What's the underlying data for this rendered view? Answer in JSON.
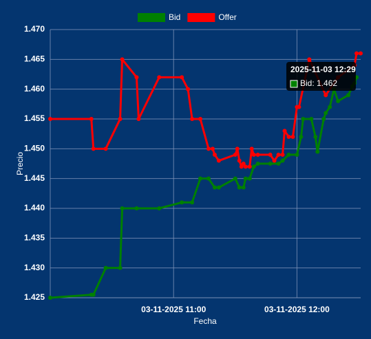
{
  "chart_data": {
    "type": "line",
    "x_label": "Fecha",
    "y_label": "Precio",
    "xlim": [
      "03-11-2025 10:00",
      "03-11-2025 12:31"
    ],
    "xticks": [
      "03-11-2025 11:00",
      "03-11-2025 12:00"
    ],
    "ylim": [
      1.425,
      1.47
    ],
    "yticks": [
      1.425,
      {
        "value": 1.43,
        "label": "1.430"
      },
      1.435,
      {
        "value": 1.44,
        "label": "1.440"
      },
      1.445,
      {
        "value": 1.45,
        "label": "1.450"
      },
      1.455,
      {
        "value": 1.46,
        "label": "1.460"
      },
      1.465,
      {
        "value": 1.47,
        "label": "1.470"
      }
    ],
    "grid": true,
    "legend_position": "top",
    "series": [
      {
        "name": "Bid",
        "color": "#008000",
        "x": [
          "03-11-2025 10:00",
          "03-11-2025 10:20",
          "03-11-2025 10:21",
          "03-11-2025 10:27",
          "03-11-2025 10:34",
          "03-11-2025 10:35",
          "03-11-2025 10:42",
          "03-11-2025 10:53",
          "03-11-2025 11:04",
          "03-11-2025 11:09",
          "03-11-2025 11:13",
          "03-11-2025 11:17",
          "03-11-2025 11:20",
          "03-11-2025 11:22",
          "03-11-2025 11:30",
          "03-11-2025 11:32",
          "03-11-2025 11:34",
          "03-11-2025 11:35",
          "03-11-2025 11:37",
          "03-11-2025 11:39",
          "03-11-2025 11:41",
          "03-11-2025 11:47",
          "03-11-2025 11:51",
          "03-11-2025 11:53",
          "03-11-2025 11:56",
          "03-11-2025 12:00",
          "03-11-2025 12:02",
          "03-11-2025 12:03",
          "03-11-2025 12:07",
          "03-11-2025 12:09",
          "03-11-2025 12:10",
          "03-11-2025 12:13",
          "03-11-2025 12:14",
          "03-11-2025 12:16",
          "03-11-2025 12:18",
          "03-11-2025 12:20",
          "03-11-2025 12:25",
          "03-11-2025 12:27",
          "03-11-2025 12:28",
          "03-11-2025 12:29"
        ],
        "values": [
          1.425,
          1.4255,
          1.4255,
          1.43,
          1.43,
          1.44,
          1.44,
          1.44,
          1.441,
          1.441,
          1.445,
          1.445,
          1.4435,
          1.4435,
          1.445,
          1.4435,
          1.4435,
          1.445,
          1.445,
          1.447,
          1.4475,
          1.4475,
          1.4475,
          1.448,
          1.449,
          1.449,
          1.452,
          1.455,
          1.455,
          1.452,
          1.4495,
          1.455,
          1.456,
          1.457,
          1.46,
          1.458,
          1.459,
          1.4605,
          1.461,
          1.462
        ]
      },
      {
        "name": "Offer",
        "color": "#ff0000",
        "x": [
          "03-11-2025 10:00",
          "03-11-2025 10:20",
          "03-11-2025 10:21",
          "03-11-2025 10:27",
          "03-11-2025 10:34",
          "03-11-2025 10:35",
          "03-11-2025 10:42",
          "03-11-2025 10:43",
          "03-11-2025 10:53",
          "03-11-2025 11:04",
          "03-11-2025 11:07",
          "03-11-2025 11:09",
          "03-11-2025 11:13",
          "03-11-2025 11:17",
          "03-11-2025 11:19",
          "03-11-2025 11:20",
          "03-11-2025 11:22",
          "03-11-2025 11:30",
          "03-11-2025 11:31",
          "03-11-2025 11:32",
          "03-11-2025 11:33",
          "03-11-2025 11:34",
          "03-11-2025 11:35",
          "03-11-2025 11:37",
          "03-11-2025 11:38",
          "03-11-2025 11:39",
          "03-11-2025 11:41",
          "03-11-2025 11:47",
          "03-11-2025 11:49",
          "03-11-2025 11:51",
          "03-11-2025 11:53",
          "03-11-2025 11:54",
          "03-11-2025 11:56",
          "03-11-2025 11:58",
          "03-11-2025 12:00",
          "03-11-2025 12:01",
          "03-11-2025 12:06",
          "03-11-2025 12:14",
          "03-11-2025 12:20",
          "03-11-2025 12:28",
          "03-11-2025 12:29",
          "03-11-2025 12:31"
        ],
        "values": [
          1.455,
          1.455,
          1.45,
          1.45,
          1.455,
          1.465,
          1.462,
          1.455,
          1.462,
          1.462,
          1.46,
          1.455,
          1.455,
          1.45,
          1.45,
          1.449,
          1.448,
          1.449,
          1.45,
          1.448,
          1.447,
          1.4475,
          1.447,
          1.447,
          1.45,
          1.449,
          1.449,
          1.449,
          1.448,
          1.449,
          1.449,
          1.453,
          1.452,
          1.452,
          1.457,
          1.457,
          1.465,
          1.459,
          1.462,
          1.464,
          1.466,
          1.466
        ]
      }
    ],
    "tooltip": {
      "title": "2025-11-03 12:29",
      "label": "Bid: 1.462"
    }
  }
}
